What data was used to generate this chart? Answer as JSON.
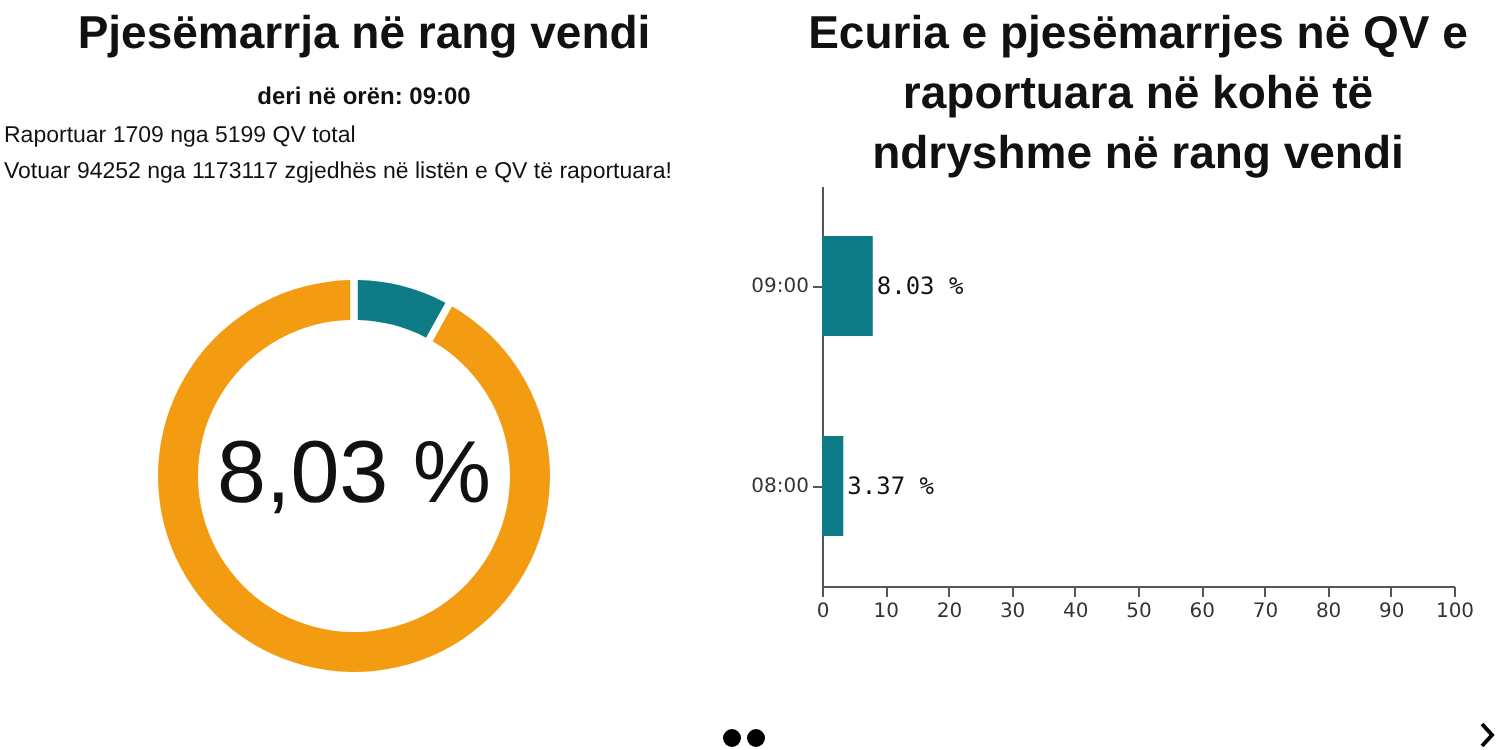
{
  "chart_data": [
    {
      "type": "donut",
      "title": "Pjesëmarrja në rang vendi",
      "subtitle": "deri në orën: 09:00",
      "annotations": [
        "Raportuar 1709 nga 5199 QV total",
        "Votuar 94252 nga 1173117 zgjedhës në listën e QV të raportuara!"
      ],
      "categories": [
        null,
        null
      ],
      "values": [
        8.03,
        91.97
      ],
      "colors": [
        "#0e7c86",
        "#f39c12"
      ],
      "value_labels": [
        "8,03 %",
        null
      ]
    },
    {
      "type": "bar",
      "orientation": "horizontal",
      "title": "Ecuria e pjesëmarrjes në QV e raportuara në kohë të ndryshme në rang vendi",
      "categories": [
        "09:00",
        "08:00"
      ],
      "values": [
        8.03,
        3.37
      ],
      "color": "#0e7c86",
      "value_labels": [
        "8.03 %",
        "3.37 %"
      ],
      "xlim": [
        0,
        100
      ],
      "xticks": [
        0,
        10,
        20,
        30,
        40,
        50,
        60,
        70,
        80,
        90,
        100
      ],
      "grid": false
    }
  ]
}
